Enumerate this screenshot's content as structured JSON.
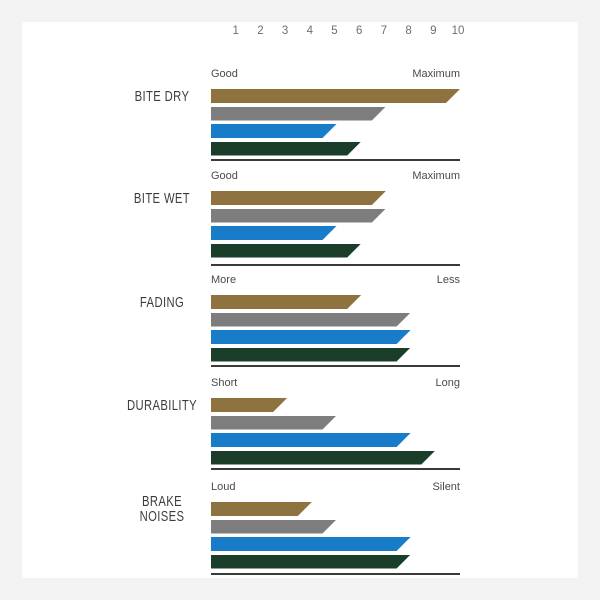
{
  "page": {
    "background_color": "#f3f3f3",
    "panel_color": "#ffffff",
    "separator_color": "#3a3a3a",
    "tick_text_color": "#6e6e6e",
    "endpoint_text_color": "#4a4a4a",
    "category_text_color": "#3d3d3d"
  },
  "chart_data": {
    "type": "bar",
    "orientation": "horizontal",
    "title": "",
    "axis_ticks": [
      "1",
      "2",
      "3",
      "4",
      "5",
      "6",
      "7",
      "8",
      "9",
      "10"
    ],
    "xlim": [
      0,
      10
    ],
    "grid": false,
    "legend": "none",
    "series": [
      {
        "name": "bronze-pad",
        "color": "#8e7340"
      },
      {
        "name": "grey-pad",
        "color": "#7d7d7d"
      },
      {
        "name": "blue-pad",
        "color": "#187cc9"
      },
      {
        "name": "dark-green-pad",
        "color": "#1b3e2b"
      }
    ],
    "groups": [
      {
        "label": "BITE DRY",
        "left_label": "Good",
        "right_label": "Maximum",
        "values": [
          10,
          7,
          5,
          6
        ]
      },
      {
        "label": "BITE WET",
        "left_label": "Good",
        "right_label": "Maximum",
        "values": [
          7,
          7,
          5,
          6
        ]
      },
      {
        "label": "FADING",
        "left_label": "More",
        "right_label": "Less",
        "values": [
          6,
          8,
          8,
          8
        ]
      },
      {
        "label": "DURABILITY",
        "left_label": "Short",
        "right_label": "Long",
        "values": [
          3,
          5,
          8,
          9
        ]
      },
      {
        "label": "BRAKE\nNOISES",
        "left_label": "Loud",
        "right_label": "Silent",
        "values": [
          4,
          5,
          8,
          8
        ]
      }
    ]
  }
}
